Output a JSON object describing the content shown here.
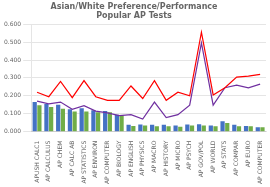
{
  "chart_data": {
    "type": "bar",
    "title": "Asian/White Preference/Performance\nPopular AP Tests",
    "categories": [
      "APUSH CALC1",
      "AP CALCULUS",
      "AP CHEM",
      "AP CALC AB",
      "AP STATISTICS",
      "AP ENVIRON",
      "AP COMPUTER",
      "AP BIOLOGY",
      "AP ENGLISH",
      "AP PHYSICS",
      "AP MACRO",
      "AP HISTORY",
      "AP MICRO",
      "AP PSYCH",
      "AP GOV/POL",
      "AP WORLD",
      "AP STATS",
      "AP COMPAR",
      "AP EURO",
      "AP COMPUTER"
    ],
    "series": [
      {
        "type": "bar",
        "color": "#4472c4",
        "values": [
          0.165,
          0.155,
          0.15,
          0.125,
          0.13,
          0.12,
          0.115,
          0.095,
          0.038,
          0.04,
          0.038,
          0.038,
          0.035,
          0.04,
          0.042,
          0.035,
          0.058,
          0.038,
          0.032,
          0.025
        ]
      },
      {
        "type": "bar",
        "color": "#70ad47",
        "values": [
          0.148,
          0.138,
          0.128,
          0.112,
          0.112,
          0.108,
          0.108,
          0.09,
          0.032,
          0.035,
          0.03,
          0.03,
          0.028,
          0.035,
          0.035,
          0.03,
          0.048,
          0.03,
          0.03,
          0.025
        ]
      },
      {
        "type": "line",
        "color": "#ff0000",
        "values": [
          0.22,
          0.195,
          0.28,
          0.19,
          0.285,
          0.195,
          0.175,
          0.175,
          0.255,
          0.185,
          0.285,
          0.175,
          0.22,
          0.2,
          0.555,
          0.205,
          0.245,
          0.305,
          0.31,
          0.32
        ]
      },
      {
        "type": "line",
        "color": "#7030a0",
        "values": [
          0.17,
          0.155,
          0.165,
          0.125,
          0.145,
          0.115,
          0.105,
          0.09,
          0.095,
          0.07,
          0.165,
          0.078,
          0.095,
          0.148,
          0.495,
          0.148,
          0.245,
          0.26,
          0.245,
          0.265
        ]
      }
    ],
    "ylim": [
      0.0,
      0.6
    ],
    "yticks": [
      {
        "value": 0.0,
        "label": "0.000"
      },
      {
        "value": 0.1,
        "label": "0.100"
      },
      {
        "value": 0.2,
        "label": "0.200"
      },
      {
        "value": 0.3,
        "label": "0.300"
      },
      {
        "value": 0.4,
        "label": "0.400"
      },
      {
        "value": 0.5,
        "label": "0.500"
      },
      {
        "value": 0.6,
        "label": "0.600"
      }
    ],
    "grid": true
  }
}
